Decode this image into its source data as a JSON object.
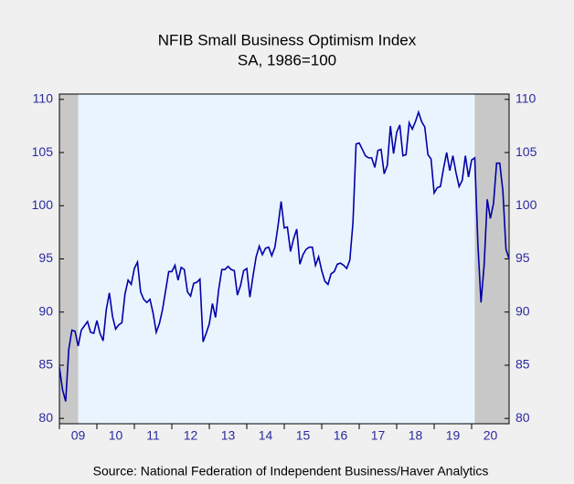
{
  "chart_data": {
    "type": "line",
    "title": "NFIB Small Business Optimism Index",
    "subtitle": "SA, 1986=100",
    "source": "Source:  National Federation of Independent Business/Haver Analytics",
    "x_start": "2009-01",
    "series": [
      {
        "name": "NFIB Small Business Optimism Index",
        "color": "#0000a8",
        "values": [
          84.8,
          82.7,
          81.6,
          86.5,
          88.3,
          88.2,
          86.8,
          88.3,
          88.7,
          89.1,
          88.1,
          88.0,
          89.2,
          88.0,
          87.3,
          90.2,
          91.8,
          89.6,
          88.4,
          88.8,
          89.0,
          91.7,
          93.0,
          92.6,
          94.1,
          94.7,
          91.9,
          91.2,
          90.9,
          91.2,
          89.9,
          88.1,
          88.9,
          90.2,
          92.0,
          93.8,
          93.8,
          94.4,
          93.0,
          94.2,
          94.0,
          91.9,
          91.5,
          92.7,
          92.8,
          93.1,
          87.2,
          88.0,
          88.9,
          90.8,
          89.5,
          92.1,
          94.0,
          94.0,
          94.3,
          94.0,
          93.9,
          91.6,
          92.5,
          93.9,
          94.1,
          91.4,
          93.4,
          95.2,
          96.2,
          95.4,
          96.0,
          96.1,
          95.3,
          96.1,
          98.1,
          100.4,
          97.9,
          98.0,
          95.7,
          96.9,
          97.8,
          94.5,
          95.4,
          95.9,
          96.1,
          96.1,
          94.4,
          95.2,
          93.9,
          92.9,
          92.6,
          93.6,
          93.8,
          94.5,
          94.6,
          94.4,
          94.1,
          94.9,
          98.4,
          105.8,
          105.9,
          105.3,
          104.7,
          104.5,
          104.5,
          103.6,
          105.2,
          105.3,
          103.0,
          103.8,
          107.5,
          104.9,
          106.9,
          107.6,
          104.7,
          104.8,
          107.8,
          107.2,
          107.9,
          108.8,
          107.9,
          107.4,
          104.8,
          104.4,
          101.2,
          101.7,
          101.8,
          103.5,
          105.0,
          103.3,
          104.7,
          103.1,
          101.8,
          102.4,
          104.7,
          102.7,
          104.3,
          104.5,
          96.4,
          90.9,
          94.4,
          100.6,
          98.8,
          100.2,
          104.0,
          104.0,
          101.4,
          95.9,
          95.0
        ]
      }
    ],
    "shaded": [
      {
        "start": "2009-01",
        "end": "2009-06"
      },
      {
        "start": "2020-02",
        "end": "2021-01"
      }
    ],
    "shade_color": "#c8c8c8",
    "plot_color": "#eaf4ff",
    "ylim": [
      79.5,
      110.5
    ],
    "yticks": [
      80,
      85,
      90,
      95,
      100,
      105,
      110
    ],
    "xlim": [
      2009,
      2021
    ],
    "xticks": [
      {
        "value": 2009,
        "label": "09"
      },
      {
        "value": 2010,
        "label": "10"
      },
      {
        "value": 2011,
        "label": "11"
      },
      {
        "value": 2012,
        "label": "12"
      },
      {
        "value": 2013,
        "label": "13"
      },
      {
        "value": 2014,
        "label": "14"
      },
      {
        "value": 2015,
        "label": "15"
      },
      {
        "value": 2016,
        "label": "16"
      },
      {
        "value": 2017,
        "label": "17"
      },
      {
        "value": 2018,
        "label": "18"
      },
      {
        "value": 2019,
        "label": "19"
      },
      {
        "value": 2020,
        "label": "20"
      }
    ]
  }
}
